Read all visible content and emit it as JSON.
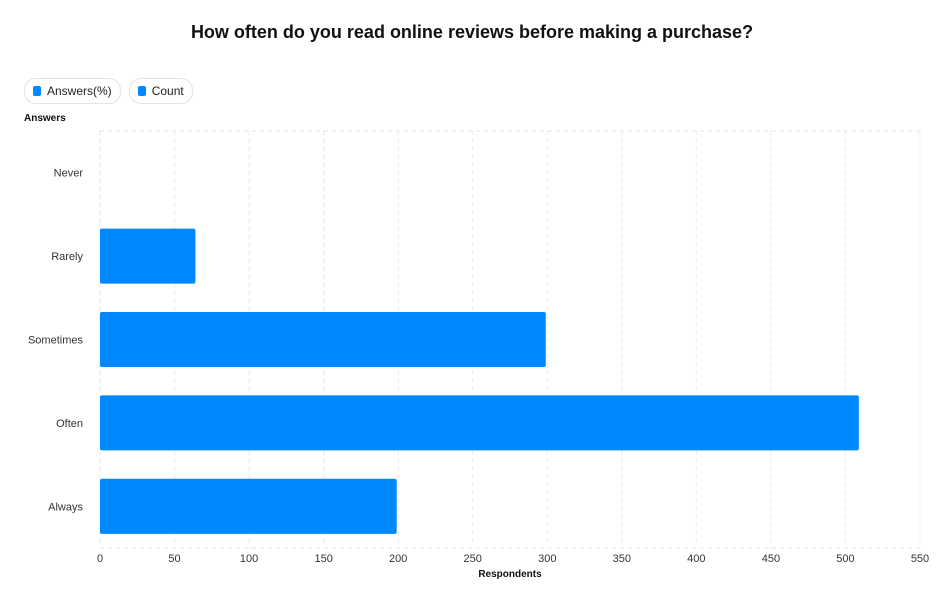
{
  "chart_data": {
    "type": "bar",
    "orientation": "horizontal",
    "title": "How often do you read online reviews before making a purchase?",
    "ylabel": "Answers",
    "xlabel": "Respondents",
    "categories": [
      "Never",
      "Rarely",
      "Sometimes",
      "Often",
      "Always"
    ],
    "series": [
      {
        "name": "Count",
        "values": [
          0,
          64,
          299,
          509,
          199
        ],
        "color": "#0088ff"
      }
    ],
    "legend": [
      {
        "label": "Answers(%)",
        "color": "#0088ff"
      },
      {
        "label": "Count",
        "color": "#0088ff"
      }
    ],
    "xlim": [
      0,
      550
    ],
    "xticks": [
      0,
      50,
      100,
      150,
      200,
      250,
      300,
      350,
      400,
      450,
      500,
      550
    ],
    "grid": true,
    "legend_position": "top-left"
  }
}
